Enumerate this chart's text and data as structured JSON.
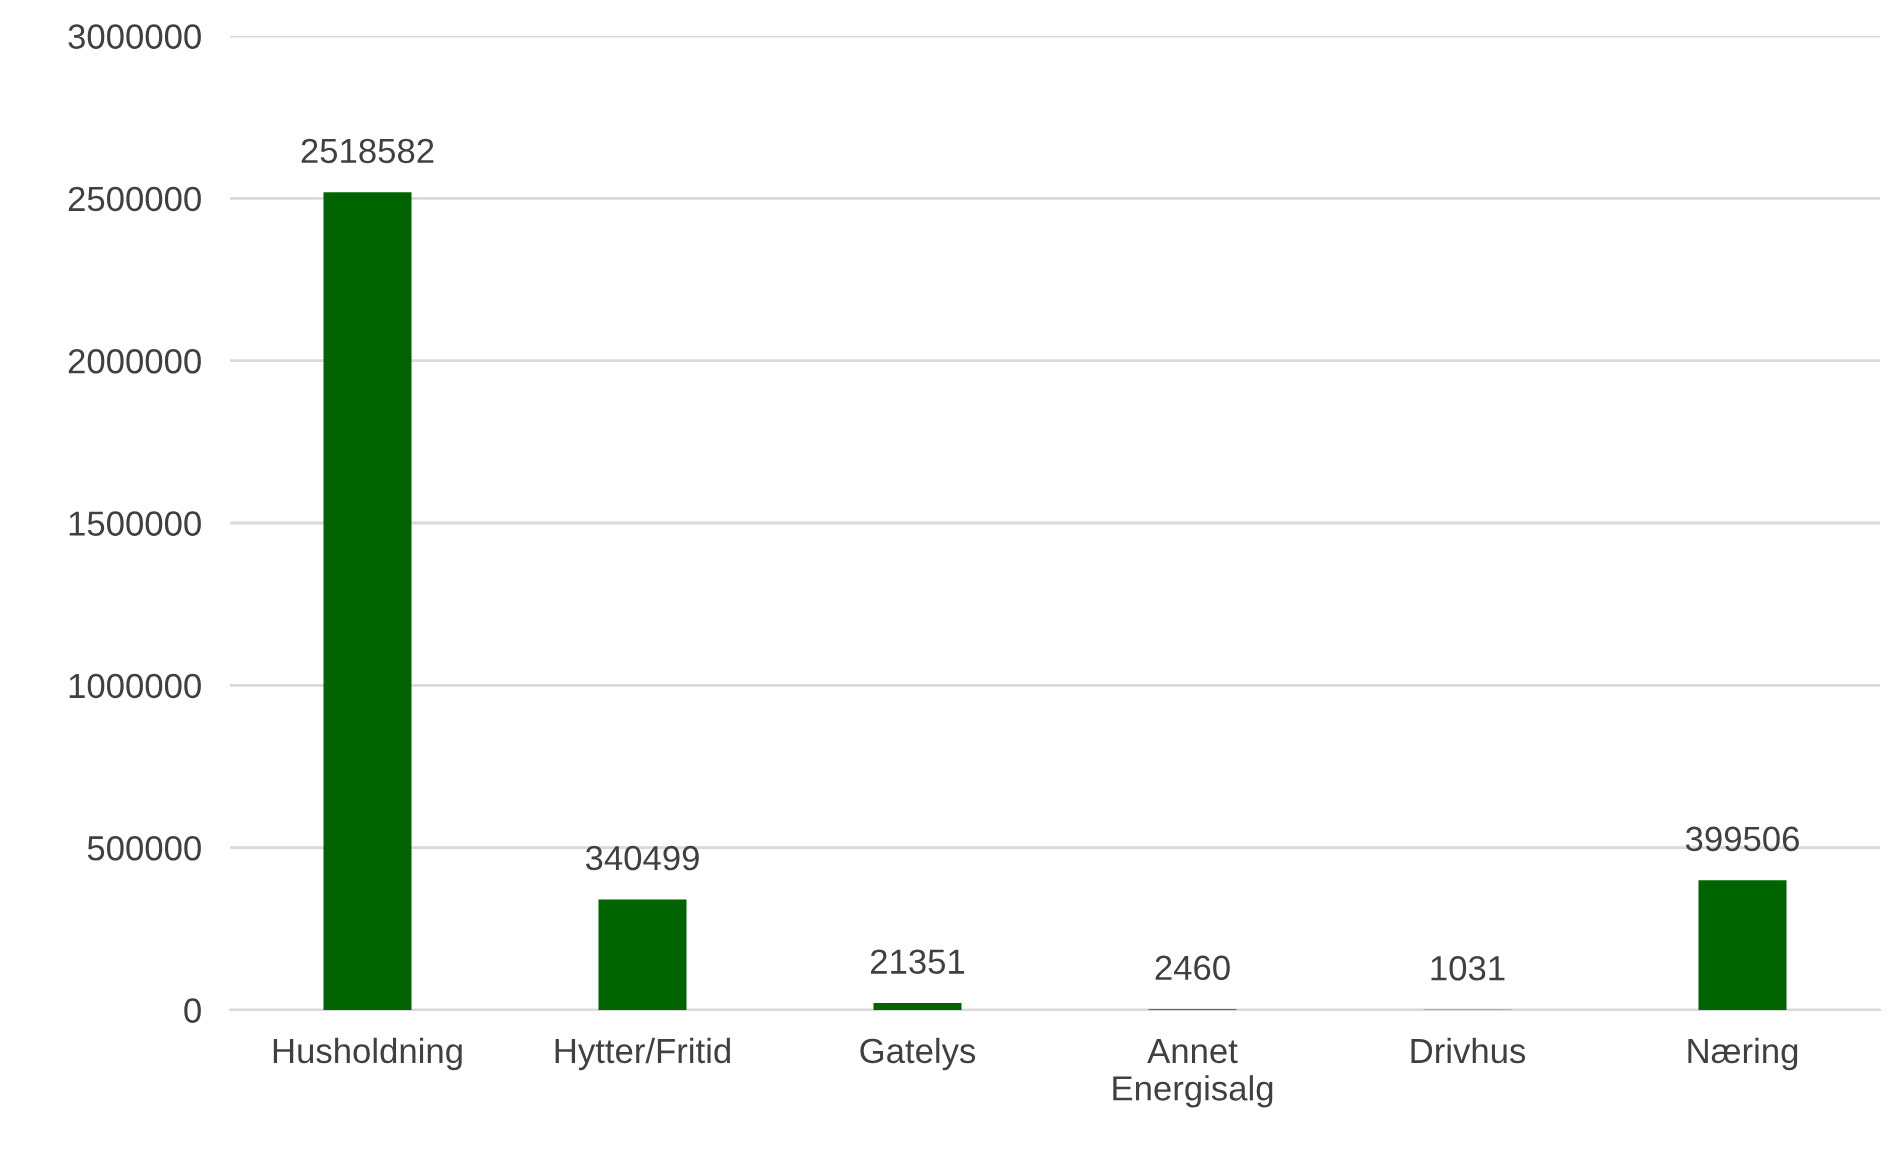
{
  "chart_data": {
    "type": "bar",
    "categories": [
      "Husholdning",
      "Hytter/Fritid",
      "Gatelys",
      "Annet\nEnergisalg",
      "Drivhus",
      "Næring"
    ],
    "values": [
      2518582,
      340499,
      21351,
      2460,
      1031,
      399506
    ],
    "color": "#006400",
    "ylim": [
      0,
      3000000
    ],
    "yticks": [
      0,
      500000,
      1000000,
      1500000,
      2000000,
      2500000,
      3000000
    ],
    "grid": "y",
    "data_labels": true
  }
}
